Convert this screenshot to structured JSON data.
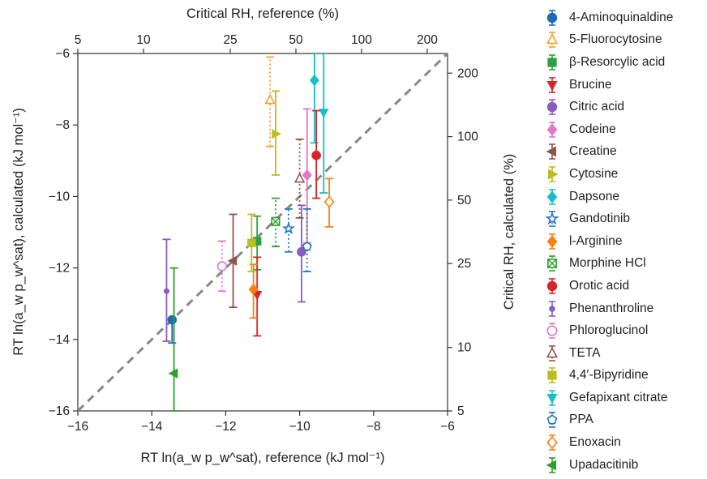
{
  "chart_data": {
    "type": "scatter",
    "title": "",
    "xlabel": "RT ln(a_w p_w^sat), reference (kJ mol⁻¹)",
    "ylabel": "RT ln(a_w p_w^sat), calculated (kJ mol⁻¹)",
    "top_axis_label": "Critical RH, reference (%)",
    "right_axis_label": "Critical RH, calculated (%)",
    "xlim": [
      -16,
      -6
    ],
    "ylim": [
      -16,
      -6
    ],
    "x_ticks": [
      "−16",
      "−14",
      "−12",
      "−10",
      "−8",
      "−6"
    ],
    "y_ticks": [
      "−16",
      "−14",
      "−12",
      "−10",
      "−8",
      "−6"
    ],
    "top_ticks": [
      "5",
      "10",
      "25",
      "50",
      "100",
      "200"
    ],
    "right_ticks": [
      "5",
      "10",
      "25",
      "50",
      "100",
      "200"
    ],
    "legend_position": "right",
    "reference_line": "y = x (dashed)",
    "series": [
      {
        "name": "4-Aminoquinaldine",
        "marker": "circle",
        "filled": true,
        "color": "#1f6bb5",
        "dotted": false,
        "x": -13.45,
        "y": -13.45,
        "ylow": -14.1,
        "yhigh": -13.45
      },
      {
        "name": "5-Fluorocytosine",
        "marker": "triangle-up",
        "filled": false,
        "color": "#f0a030",
        "dotted": true,
        "x": -10.8,
        "y": -7.3,
        "ylow": -8.6,
        "yhigh": -6.1
      },
      {
        "name": "β-Resorcylic acid",
        "marker": "square",
        "filled": true,
        "color": "#2ea043",
        "dotted": false,
        "x": -11.15,
        "y": -11.25,
        "ylow": -12.05,
        "yhigh": -10.55
      },
      {
        "name": "Brucine",
        "marker": "triangle-down",
        "filled": true,
        "color": "#d62728",
        "dotted": false,
        "x": -11.15,
        "y": -12.75,
        "ylow": -13.9,
        "yhigh": -11.7
      },
      {
        "name": "Citric acid",
        "marker": "circle",
        "filled": true,
        "color": "#8a5cc2",
        "dotted": false,
        "x": -9.95,
        "y": -11.55,
        "ylow": -12.95,
        "yhigh": -10.25
      },
      {
        "name": "Codeine",
        "marker": "diamond",
        "filled": true,
        "color": "#e377c2",
        "dotted": false,
        "x": -9.8,
        "y": -9.4,
        "ylow": -11.3,
        "yhigh": -7.55
      },
      {
        "name": "Creatine",
        "marker": "triangle-left",
        "filled": true,
        "color": "#8c564b",
        "dotted": false,
        "x": -11.8,
        "y": -11.8,
        "ylow": -13.1,
        "yhigh": -10.5
      },
      {
        "name": "Cytosine",
        "marker": "triangle-right",
        "filled": true,
        "color": "#bcbd22",
        "dotted": false,
        "x": -10.65,
        "y": -8.25,
        "ylow": -9.4,
        "yhigh": -7.05
      },
      {
        "name": "Dapsone",
        "marker": "diamond",
        "filled": true,
        "color": "#17becf",
        "dotted": false,
        "x": -9.6,
        "y": -6.75,
        "ylow": -8.5,
        "yhigh": -6.0
      },
      {
        "name": "Gandotinib",
        "marker": "star",
        "filled": false,
        "color": "#2878c8",
        "dotted": true,
        "x": -10.3,
        "y": -10.9,
        "ylow": -11.55,
        "yhigh": -10.35
      },
      {
        "name": "l-Arginine",
        "marker": "diamond",
        "filled": true,
        "color": "#ff7f0e",
        "dotted": false,
        "x": -11.25,
        "y": -12.6,
        "ylow": -13.4,
        "yhigh": -11.9
      },
      {
        "name": "Morphine HCl",
        "marker": "x-square",
        "filled": false,
        "color": "#2ca02c",
        "dotted": true,
        "x": -10.65,
        "y": -10.7,
        "ylow": -11.4,
        "yhigh": -10.05
      },
      {
        "name": "Orotic acid",
        "marker": "circle",
        "filled": true,
        "color": "#d62728",
        "dotted": false,
        "x": -9.55,
        "y": -8.85,
        "ylow": -10.05,
        "yhigh": -7.6
      },
      {
        "name": "Phenanthroline",
        "marker": "circle-small",
        "filled": true,
        "color": "#8a5cc2",
        "dotted": false,
        "x": -13.6,
        "y": -12.65,
        "ylow": -14.05,
        "yhigh": -11.2
      },
      {
        "name": "Phloroglucinol",
        "marker": "circle",
        "filled": false,
        "color": "#e377c2",
        "dotted": true,
        "x": -12.1,
        "y": -11.95,
        "ylow": -12.65,
        "yhigh": -11.25
      },
      {
        "name": "TETA",
        "marker": "triangle-up",
        "filled": false,
        "color": "#8c564b",
        "dotted": true,
        "x": -10.0,
        "y": -9.5,
        "ylow": -10.6,
        "yhigh": -8.4
      },
      {
        "name": "4,4′-Bipyridine",
        "marker": "square",
        "filled": true,
        "color": "#bcbd22",
        "dotted": false,
        "x": -11.3,
        "y": -11.3,
        "ylow": -12.1,
        "yhigh": -10.5
      },
      {
        "name": "Gefapixant citrate",
        "marker": "triangle-down",
        "filled": true,
        "color": "#17becf",
        "dotted": false,
        "x": -9.35,
        "y": -7.65,
        "ylow": -9.9,
        "yhigh": -6.0
      },
      {
        "name": "PPA",
        "marker": "pentagon",
        "filled": false,
        "color": "#1f77b4",
        "dotted": true,
        "x": -9.8,
        "y": -11.4,
        "ylow": -12.1,
        "yhigh": -10.35
      },
      {
        "name": "Enoxacin",
        "marker": "diamond",
        "filled": false,
        "color": "#ff7f0e",
        "dotted": false,
        "x": -9.2,
        "y": -10.15,
        "ylow": -10.85,
        "yhigh": -9.5
      },
      {
        "name": "Upadacitinib",
        "marker": "triangle-left",
        "filled": true,
        "color": "#2ca02c",
        "dotted": false,
        "x": -13.4,
        "y": -14.95,
        "ylow": -16.0,
        "yhigh": -12.0
      }
    ]
  }
}
